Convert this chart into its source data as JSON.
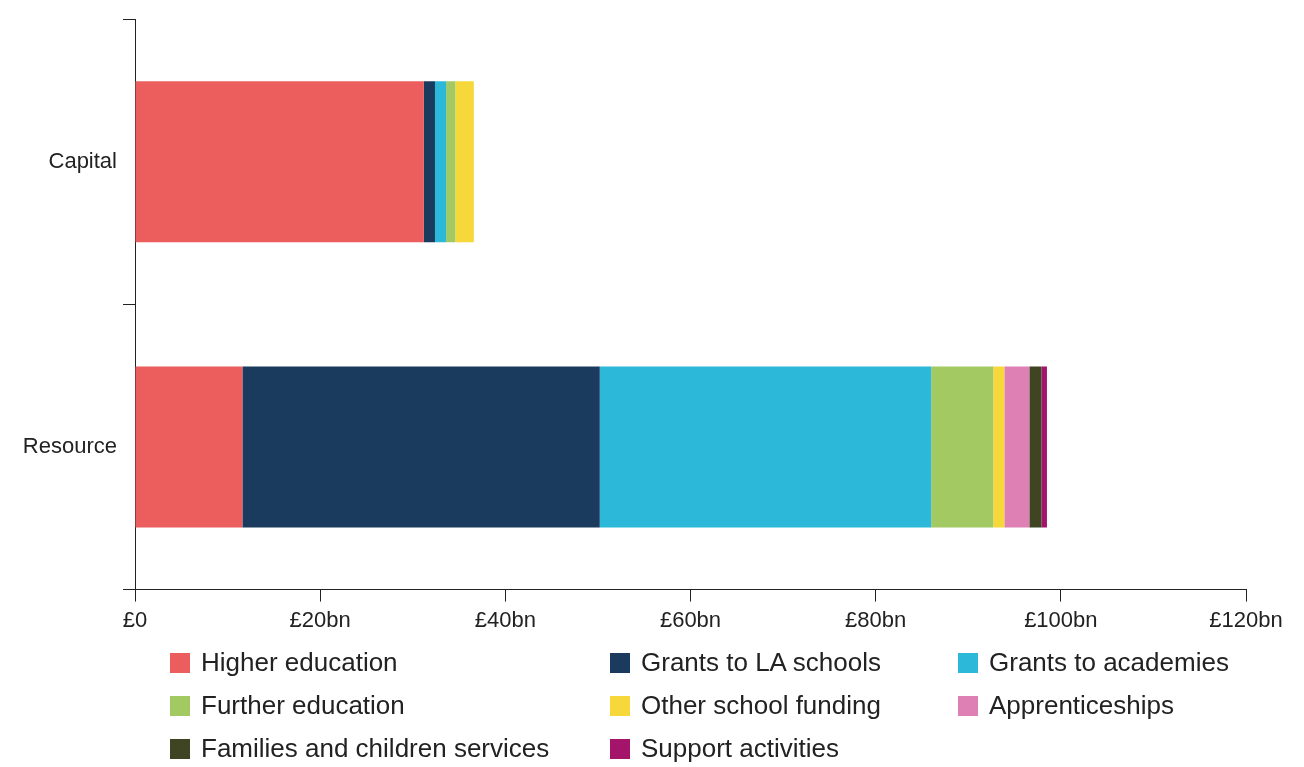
{
  "chart_data": {
    "type": "bar",
    "orientation": "horizontal",
    "stacked": true,
    "legend": "bottom",
    "categories": [
      "Capital",
      "Resource"
    ],
    "xlim": [
      0,
      120
    ],
    "xticks": [
      {
        "value": 0,
        "label": "£0"
      },
      {
        "value": 20,
        "label": "£20bn"
      },
      {
        "value": 40,
        "label": "£40bn"
      },
      {
        "value": 60,
        "label": "£60bn"
      },
      {
        "value": 80,
        "label": "£80bn"
      },
      {
        "value": 100,
        "label": "£100bn"
      },
      {
        "value": 120,
        "label": "£120bn"
      }
    ],
    "series": [
      {
        "name": "Higher education",
        "color": "#eb5e5d",
        "values": [
          31.2,
          11.6
        ]
      },
      {
        "name": "Grants to LA schools",
        "color": "#1a3a5e",
        "values": [
          1.2,
          38.6
        ]
      },
      {
        "name": "Grants to academies",
        "color": "#2bb8d9",
        "values": [
          1.2,
          35.8
        ]
      },
      {
        "name": "Further education",
        "color": "#a3c963",
        "values": [
          1.0,
          6.7
        ]
      },
      {
        "name": "Other school funding",
        "color": "#f7d83a",
        "values": [
          2.0,
          1.2
        ]
      },
      {
        "name": "Apprenticeships",
        "color": "#de80b3",
        "values": [
          null,
          2.7
        ]
      },
      {
        "name": "Families and children services",
        "color": "#3f4522",
        "values": [
          null,
          1.3
        ]
      },
      {
        "name": "Support activities",
        "color": "#a3146a",
        "values": [
          null,
          0.6
        ]
      }
    ]
  }
}
